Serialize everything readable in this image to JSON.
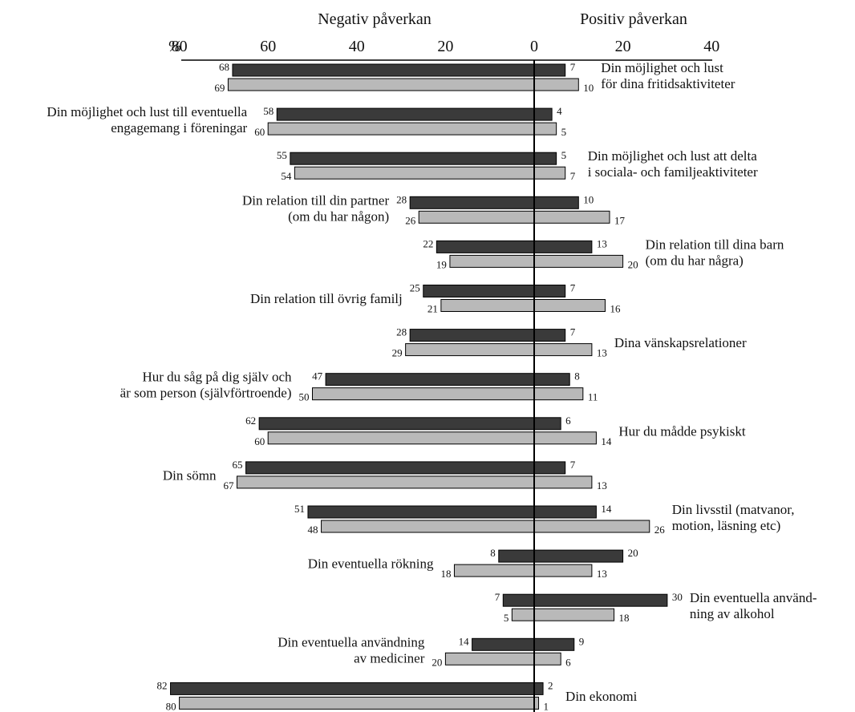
{
  "chart_data": {
    "type": "bar",
    "orientation": "diverging-horizontal",
    "negative_header": "Negativ påverkan",
    "positive_header": "Positiv påverkan",
    "unit_label": "%",
    "xlim": [
      -80,
      40
    ],
    "ticks": [
      {
        "value": -80,
        "label": "80"
      },
      {
        "value": -60,
        "label": "60"
      },
      {
        "value": -40,
        "label": "40"
      },
      {
        "value": -20,
        "label": "20"
      },
      {
        "value": 0,
        "label": "0"
      },
      {
        "value": 20,
        "label": "20"
      },
      {
        "value": 40,
        "label": "40"
      }
    ],
    "colors": {
      "series_a": "#3a3a3a",
      "series_b": "#b9b9b9"
    },
    "categories": [
      {
        "label": [
          "Din möjlighet och lust",
          "för dina fritidsaktiviteter"
        ],
        "side": "right",
        "a": {
          "neg": 68,
          "pos": 7
        },
        "b": {
          "neg": 69,
          "pos": 10
        }
      },
      {
        "label": [
          "Din möjlighet och lust till eventuella",
          "engagemang i föreningar"
        ],
        "side": "left",
        "a": {
          "neg": 58,
          "pos": 4
        },
        "b": {
          "neg": 60,
          "pos": 5
        }
      },
      {
        "label": [
          "Din möjlighet och lust att delta",
          "i sociala- och familjeaktiviteter"
        ],
        "side": "right",
        "a": {
          "neg": 55,
          "pos": 5
        },
        "b": {
          "neg": 54,
          "pos": 7
        }
      },
      {
        "label": [
          "Din relation till din partner",
          "(om du har någon)"
        ],
        "side": "left",
        "a": {
          "neg": 28,
          "pos": 10
        },
        "b": {
          "neg": 26,
          "pos": 17
        }
      },
      {
        "label": [
          "Din relation till dina barn",
          "(om du har några)"
        ],
        "side": "right",
        "a": {
          "neg": 22,
          "pos": 13
        },
        "b": {
          "neg": 19,
          "pos": 20
        }
      },
      {
        "label": [
          "Din relation till övrig familj"
        ],
        "side": "left",
        "a": {
          "neg": 25,
          "pos": 7
        },
        "b": {
          "neg": 21,
          "pos": 16
        }
      },
      {
        "label": [
          "Dina vänskapsrelationer"
        ],
        "side": "right",
        "a": {
          "neg": 28,
          "pos": 7
        },
        "b": {
          "neg": 29,
          "pos": 13
        }
      },
      {
        "label": [
          "Hur du såg på dig själv och",
          "är som person (självförtroende)"
        ],
        "side": "left",
        "a": {
          "neg": 47,
          "pos": 8
        },
        "b": {
          "neg": 50,
          "pos": 11
        }
      },
      {
        "label": [
          "Hur du mådde psykiskt"
        ],
        "side": "right",
        "a": {
          "neg": 62,
          "pos": 6
        },
        "b": {
          "neg": 60,
          "pos": 14
        }
      },
      {
        "label": [
          "Din sömn"
        ],
        "side": "left",
        "a": {
          "neg": 65,
          "pos": 7
        },
        "b": {
          "neg": 67,
          "pos": 13
        }
      },
      {
        "label": [
          "Din livsstil (matvanor,",
          "motion, läsning etc)"
        ],
        "side": "right",
        "a": {
          "neg": 51,
          "pos": 14
        },
        "b": {
          "neg": 48,
          "pos": 26
        }
      },
      {
        "label": [
          "Din eventuella rökning"
        ],
        "side": "left",
        "a": {
          "neg": 8,
          "pos": 20
        },
        "b": {
          "neg": 18,
          "pos": 13
        }
      },
      {
        "label": [
          "Din eventuella använd-",
          "ning av alkohol"
        ],
        "side": "right",
        "a": {
          "neg": 7,
          "pos": 30
        },
        "b": {
          "neg": 5,
          "pos": 18
        }
      },
      {
        "label": [
          "Din eventuella användning",
          "av mediciner"
        ],
        "side": "left",
        "a": {
          "neg": 14,
          "pos": 9
        },
        "b": {
          "neg": 20,
          "pos": 6
        }
      },
      {
        "label": [
          "Din ekonomi"
        ],
        "side": "right",
        "a": {
          "neg": 82,
          "pos": 2
        },
        "b": {
          "neg": 80,
          "pos": 1
        }
      }
    ]
  }
}
